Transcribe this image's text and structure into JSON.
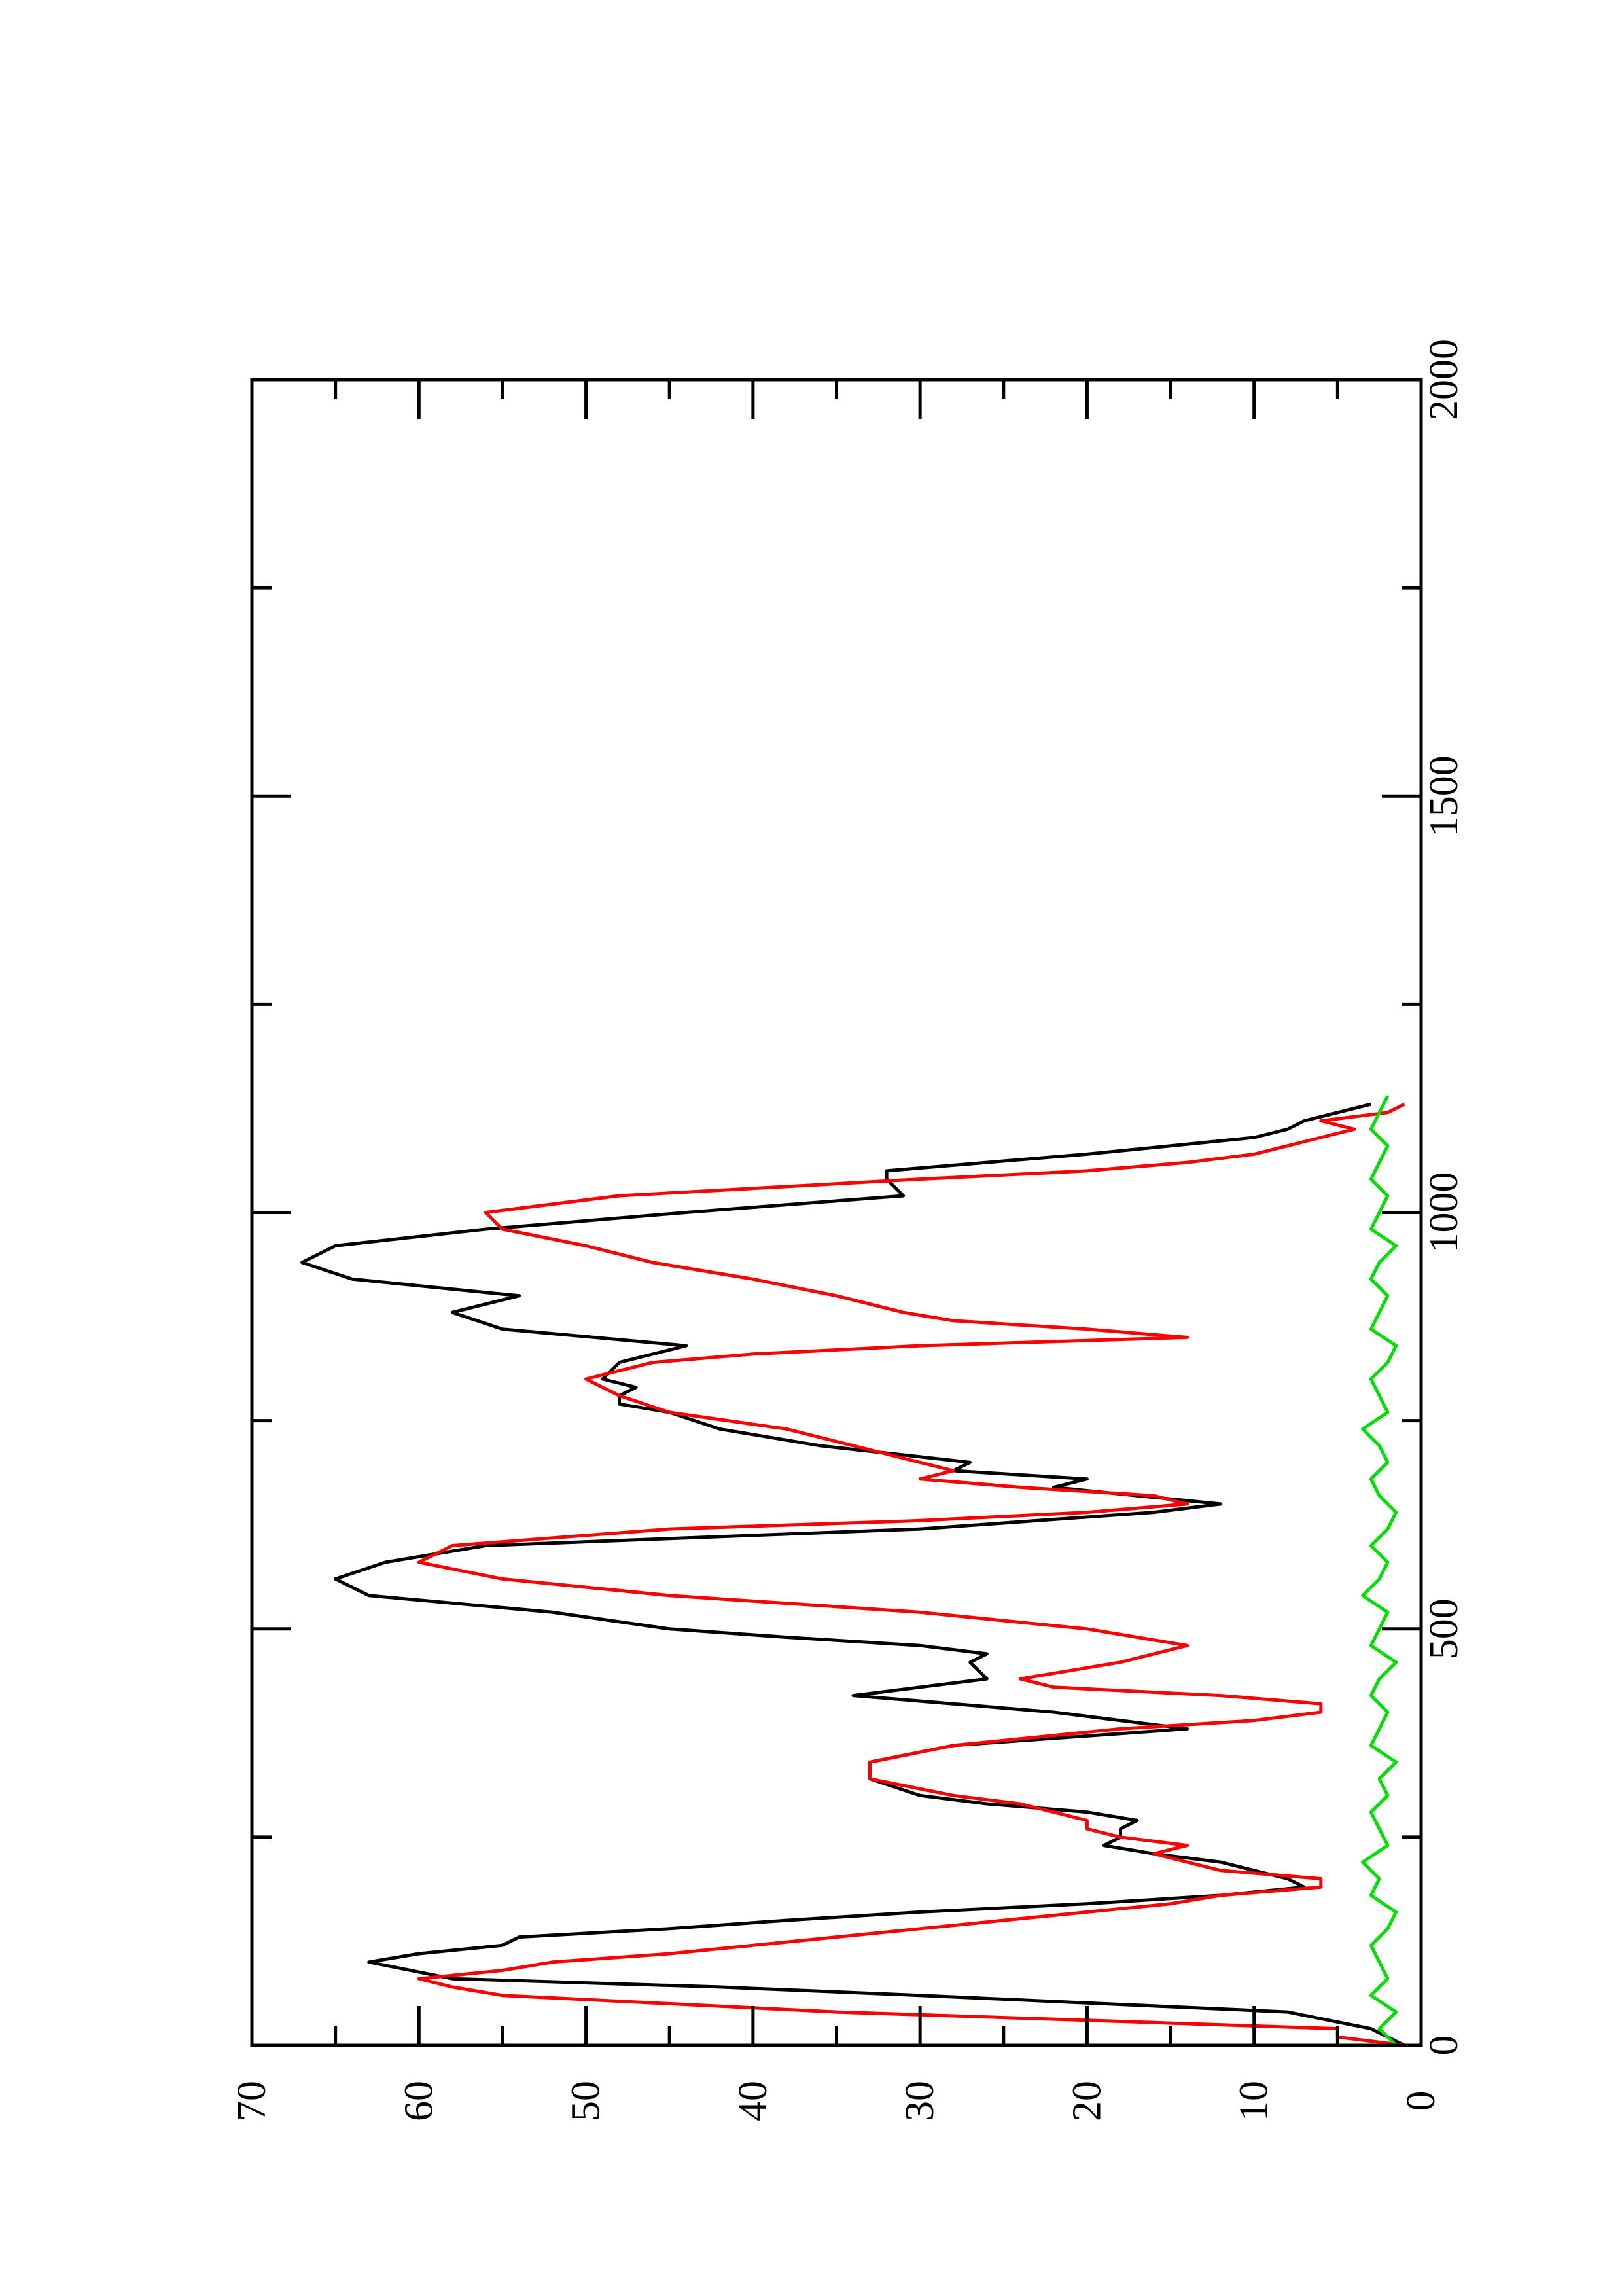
{
  "chart_data": {
    "type": "line",
    "orientation": "rotated-90-ccw",
    "title": "",
    "xlabel": "",
    "ylabel": "",
    "xlim": [
      0,
      2000
    ],
    "ylim": [
      0,
      70
    ],
    "grid": false,
    "legend": "none",
    "x_ticks": [
      "0",
      "500",
      "1000",
      "1500",
      "2000"
    ],
    "y_ticks": [
      "0",
      "10",
      "20",
      "30",
      "40",
      "50",
      "60",
      "70"
    ],
    "series": [
      {
        "color": "#000000",
        "x": [
          0,
          20,
          40,
          60,
          70,
          80,
          100,
          110,
          120,
          130,
          140,
          150,
          160,
          170,
          180,
          190,
          200,
          210,
          220,
          230,
          240,
          250,
          260,
          270,
          280,
          290,
          300,
          320,
          340,
          360,
          380,
          400,
          420,
          440,
          460,
          470,
          480,
          490,
          500,
          520,
          540,
          560,
          580,
          600,
          620,
          640,
          650,
          660,
          670,
          680,
          690,
          700,
          720,
          740,
          760,
          770,
          780,
          790,
          800,
          820,
          840,
          860,
          880,
          900,
          920,
          940,
          960,
          980,
          1000,
          1020,
          1040,
          1050,
          1060,
          1070,
          1080,
          1090,
          1100,
          1110,
          1120,
          1130
        ],
        "y": [
          1,
          3,
          8,
          30,
          42,
          58,
          63,
          60,
          55,
          54,
          45,
          38,
          30,
          20,
          12,
          7,
          8,
          10,
          12,
          16,
          19,
          18,
          18,
          17,
          20,
          26,
          30,
          33,
          33,
          28,
          14,
          22,
          34,
          26,
          27,
          26,
          30,
          38,
          45,
          52,
          63,
          65,
          62,
          56,
          30,
          16,
          12,
          17,
          22,
          20,
          28,
          27,
          36,
          42,
          45,
          48,
          48,
          47,
          49,
          48,
          44,
          55,
          58,
          54,
          64,
          67,
          65,
          56,
          44,
          31,
          32,
          32,
          26,
          20,
          15,
          10,
          8,
          7,
          5,
          3
        ]
      },
      {
        "color": "#ff0000",
        "x": [
          0,
          10,
          20,
          30,
          40,
          50,
          60,
          70,
          80,
          90,
          100,
          110,
          120,
          130,
          140,
          150,
          160,
          170,
          180,
          190,
          200,
          210,
          220,
          230,
          240,
          250,
          260,
          270,
          280,
          290,
          300,
          320,
          340,
          360,
          380,
          390,
          400,
          410,
          420,
          430,
          440,
          460,
          480,
          500,
          520,
          540,
          560,
          580,
          600,
          620,
          630,
          640,
          650,
          660,
          670,
          680,
          690,
          700,
          720,
          740,
          760,
          780,
          800,
          810,
          820,
          830,
          840,
          850,
          860,
          870,
          880,
          900,
          920,
          940,
          960,
          980,
          1000,
          1020,
          1040,
          1050,
          1060,
          1070,
          1080,
          1090,
          1100,
          1110,
          1120,
          1130
        ],
        "y": [
          1,
          5,
          5,
          20,
          35,
          45,
          55,
          58,
          60,
          55,
          52,
          45,
          40,
          35,
          30,
          25,
          20,
          15,
          12,
          6,
          6,
          12,
          14,
          16,
          14,
          18,
          20,
          20,
          22,
          24,
          28,
          33,
          33,
          28,
          18,
          10,
          6,
          6,
          12,
          22,
          24,
          18,
          14,
          20,
          30,
          45,
          55,
          60,
          58,
          45,
          30,
          20,
          14,
          16,
          24,
          30,
          28,
          30,
          34,
          38,
          45,
          48,
          50,
          48,
          46,
          40,
          30,
          14,
          20,
          28,
          31,
          35,
          40,
          46,
          50,
          55,
          56,
          48,
          30,
          20,
          14,
          10,
          8,
          6,
          4,
          6,
          2,
          1
        ]
      },
      {
        "color": "#00e000",
        "x": [
          0,
          20,
          40,
          60,
          80,
          100,
          120,
          140,
          160,
          180,
          200,
          220,
          240,
          260,
          280,
          300,
          320,
          340,
          360,
          380,
          400,
          420,
          440,
          460,
          480,
          500,
          520,
          540,
          560,
          580,
          600,
          620,
          640,
          660,
          680,
          700,
          720,
          740,
          760,
          780,
          800,
          820,
          840,
          860,
          880,
          900,
          920,
          940,
          960,
          980,
          1000,
          1020,
          1040,
          1060,
          1080,
          1100,
          1120,
          1140
        ],
        "y": [
          1.5,
          2.5,
          1.5,
          3,
          2,
          2.5,
          3,
          2,
          1.5,
          3,
          2.5,
          3.5,
          2,
          2.5,
          3,
          2,
          2.5,
          1.5,
          3,
          2.5,
          2,
          3,
          2.5,
          1.5,
          3,
          2.5,
          2,
          3.5,
          2.5,
          2,
          3,
          2,
          1.5,
          2.5,
          3,
          2,
          2.5,
          3.5,
          2,
          2.5,
          3,
          2,
          1.5,
          3,
          2.5,
          2,
          3,
          2.5,
          1.5,
          3,
          2.5,
          2,
          3,
          2.5,
          2,
          3,
          2.5,
          2
        ]
      }
    ]
  }
}
